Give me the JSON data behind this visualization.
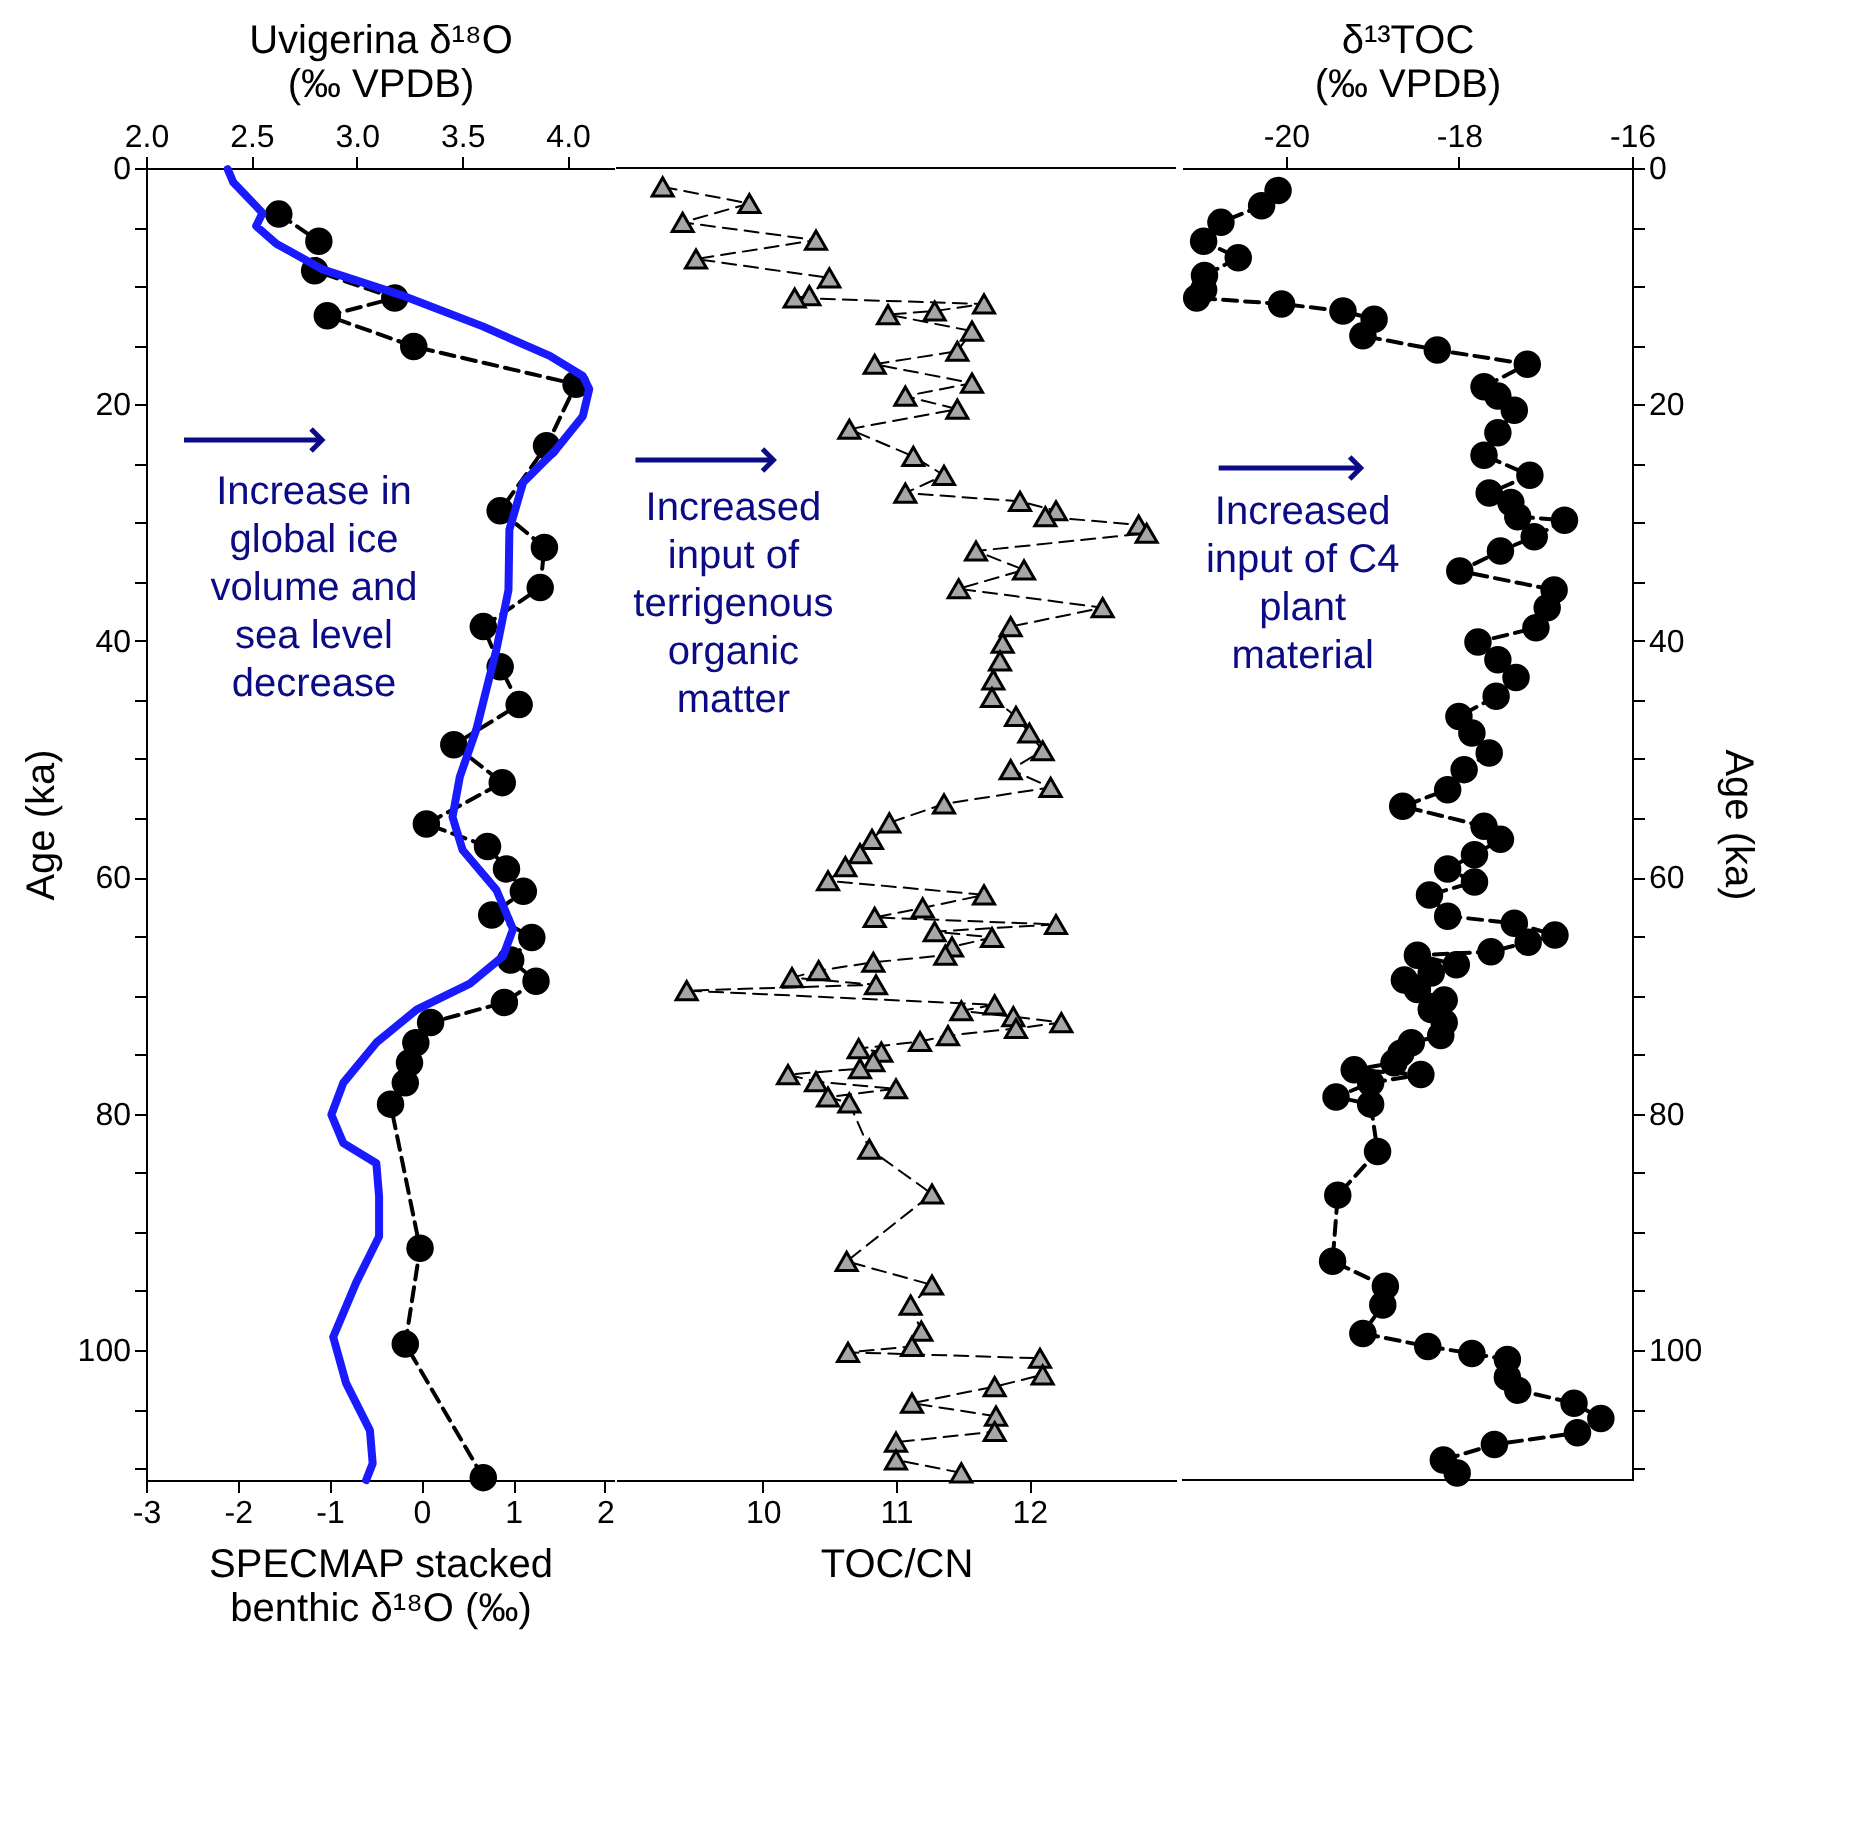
{
  "chart_data": [
    {
      "type": "line",
      "x2label": "Uvigerina δ¹⁸O\n(‰ VPDB)",
      "xlabel": "SPECMAP stacked\nbenthic δ¹⁸O (‰)",
      "ylabel": "Age (ka)",
      "ylim": [
        111,
        0
      ],
      "yticks": [
        0,
        {
          "value": 5,
          "label": null
        },
        {
          "value": 10,
          "label": null
        },
        {
          "value": 15,
          "label": null
        },
        20,
        {
          "value": 25,
          "label": null
        },
        {
          "value": 30,
          "label": null
        },
        {
          "value": 35,
          "label": null
        },
        40,
        {
          "value": 45,
          "label": null
        },
        {
          "value": 50,
          "label": null
        },
        {
          "value": 55,
          "label": null
        },
        60,
        {
          "value": 65,
          "label": null
        },
        {
          "value": 70,
          "label": null
        },
        {
          "value": 75,
          "label": null
        },
        80,
        {
          "value": 85,
          "label": null
        },
        {
          "value": 90,
          "label": null
        },
        {
          "value": 95,
          "label": null
        },
        100,
        {
          "value": 105,
          "label": null
        },
        {
          "value": 110,
          "label": null
        }
      ],
      "xlim": [
        -3,
        2.1
      ],
      "xticks": [
        -3,
        -2,
        -1,
        0,
        1,
        2
      ],
      "x2lim": [
        2.0,
        4.22
      ],
      "x2ticks": [
        {
          "value": 2.0,
          "label": "2.0"
        },
        2.5,
        {
          "value": 3.0,
          "label": "3.0"
        },
        3.5,
        {
          "value": 4.0,
          "label": "4.0"
        }
      ],
      "annotations": [
        "Increase in\nglobal ice\nvolume and\nsea level\ndecrease"
      ],
      "series": [
        {
          "axis": "x2",
          "color": "#000000",
          "marker": "circle",
          "line_style": "dashed",
          "x": [
            2.63,
            2.82,
            2.8,
            3.18,
            2.86,
            3.27,
            4.04,
            3.9,
            3.68,
            3.89,
            3.87,
            3.6,
            3.68,
            3.77,
            3.46,
            3.69,
            3.33,
            3.62,
            3.71,
            3.79,
            3.64,
            3.83,
            3.73,
            3.85,
            3.7,
            3.35,
            3.28,
            3.25,
            3.23,
            3.16,
            3.3,
            3.23,
            3.6
          ],
          "values": [
            3.9,
            6.2,
            8.7,
            11.0,
            12.5,
            15.1,
            18.3,
            23.5,
            29.0,
            32.1,
            35.5,
            38.8,
            42.2,
            45.4,
            48.8,
            52.0,
            55.5,
            57.4,
            59.3,
            61.2,
            63.2,
            65.1,
            67.0,
            68.8,
            70.6,
            72.3,
            74.0,
            75.7,
            77.4,
            79.2,
            91.4,
            99.5,
            110.8
          ]
        },
        {
          "color": "#1a1aff",
          "marker": "none",
          "line_style": "solid",
          "x": [
            -2.11,
            -2.05,
            -1.73,
            -1.8,
            -1.58,
            -1.07,
            -0.2,
            0.67,
            1.4,
            1.76,
            1.83,
            1.76,
            1.47,
            1.11,
            0.96,
            0.95,
            0.82,
            0.6,
            0.42,
            0.34,
            0.45,
            0.82,
            1.0,
            0.89,
            0.53,
            -0.05,
            -0.49,
            -0.85,
            -0.98,
            -0.85,
            -0.49,
            -0.46,
            -0.46,
            -0.71,
            -0.96,
            -0.82,
            -0.56,
            -0.53,
            -0.6
          ],
          "values": [
            0.1,
            1.2,
            3.8,
            4.9,
            6.4,
            8.6,
            10.8,
            13.4,
            15.9,
            17.6,
            18.7,
            21.0,
            23.8,
            26.6,
            30.6,
            35.7,
            40.7,
            47.5,
            51.5,
            54.9,
            57.7,
            61.1,
            64.4,
            66.7,
            69.0,
            71.2,
            74.0,
            77.4,
            80.1,
            82.5,
            84.2,
            87.0,
            90.4,
            94.3,
            98.9,
            102.8,
            106.8,
            109.6,
            111.0
          ]
        }
      ]
    },
    {
      "type": "line",
      "xlabel": "TOC/CN",
      "tick_labels": "x",
      "ylim": [
        111,
        0
      ],
      "xlim": [
        8.9,
        13.1
      ],
      "xticks": [
        10,
        11,
        12
      ],
      "annotations": [
        "Increased\ninput of\nterrigenous\norganic\nmatter"
      ],
      "series": [
        {
          "color": "#a6a6a6",
          "marker": "triangle",
          "line_style": "dashed",
          "x": [
            9.25,
            9.9,
            9.4,
            10.4,
            9.5,
            10.5,
            10.35,
            10.24,
            11.66,
            11.29,
            10.94,
            11.57,
            11.46,
            10.84,
            11.57,
            11.07,
            11.46,
            10.65,
            11.13,
            11.36,
            11.07,
            11.93,
            12.2,
            12.12,
            12.82,
            12.88,
            11.6,
            11.96,
            11.47,
            12.55,
            11.86,
            11.8,
            11.78,
            11.73,
            11.72,
            11.9,
            12.0,
            12.1,
            11.86,
            12.16,
            11.36,
            10.95,
            10.82,
            10.73,
            10.62,
            10.49,
            11.66,
            11.2,
            10.84,
            12.2,
            11.29,
            11.72,
            11.42,
            11.37,
            10.83,
            10.42,
            10.22,
            10.85,
            9.43,
            11.74,
            11.49,
            11.88,
            12.24,
            11.9,
            11.39,
            11.18,
            10.72,
            10.89,
            10.83,
            10.73,
            10.19,
            10.4,
            11.0,
            10.49,
            10.65,
            10.8,
            11.27,
            10.63,
            11.27,
            11.11,
            11.19,
            11.12,
            10.64,
            12.08,
            12.1,
            11.74,
            11.12,
            11.75,
            11.74,
            11.0,
            11.0,
            11.49
          ],
          "values": [
            1.6,
            3.0,
            4.6,
            6.1,
            7.7,
            9.3,
            10.8,
            11.0,
            11.5,
            12.1,
            12.4,
            13.8,
            15.5,
            16.6,
            18.2,
            19.3,
            20.4,
            22.1,
            24.4,
            26.0,
            27.5,
            28.2,
            29.0,
            29.5,
            30.2,
            30.9,
            32.4,
            34.0,
            35.6,
            37.2,
            38.8,
            40.2,
            41.7,
            43.3,
            44.8,
            46.4,
            47.8,
            49.3,
            50.9,
            52.4,
            53.8,
            55.4,
            56.8,
            58.0,
            59.1,
            60.3,
            61.5,
            62.6,
            63.4,
            64.0,
            64.6,
            65.1,
            65.9,
            66.6,
            67.2,
            67.9,
            68.5,
            69.1,
            69.6,
            70.8,
            71.3,
            71.8,
            72.3,
            72.8,
            73.4,
            73.9,
            74.5,
            74.8,
            75.6,
            76.2,
            76.7,
            77.3,
            77.9,
            78.6,
            79.1,
            83.0,
            86.8,
            92.5,
            94.5,
            96.2,
            98.4,
            99.7,
            100.2,
            100.7,
            102.1,
            103.1,
            104.5,
            105.6,
            106.9,
            107.8,
            109.3,
            110.4
          ]
        }
      ]
    },
    {
      "type": "line",
      "xlabel": "δ¹³TOC\n(‰ VPDB)",
      "ylabel": "Age (ka)",
      "ylim": [
        111,
        0
      ],
      "yticks": [
        0,
        {
          "value": 5,
          "label": null
        },
        {
          "value": 10,
          "label": null
        },
        {
          "value": 15,
          "label": null
        },
        20,
        {
          "value": 25,
          "label": null
        },
        {
          "value": 30,
          "label": null
        },
        {
          "value": 35,
          "label": null
        },
        40,
        {
          "value": 45,
          "label": null
        },
        {
          "value": 50,
          "label": null
        },
        {
          "value": 55,
          "label": null
        },
        60,
        {
          "value": 65,
          "label": null
        },
        {
          "value": 70,
          "label": null
        },
        {
          "value": 75,
          "label": null
        },
        80,
        {
          "value": 85,
          "label": null
        },
        {
          "value": 90,
          "label": null
        },
        {
          "value": 95,
          "label": null
        },
        100,
        {
          "value": 105,
          "label": null
        },
        {
          "value": 110,
          "label": null
        }
      ],
      "xlim": [
        -21.2,
        -16
      ],
      "xticks": [
        -20,
        -18,
        -16
      ],
      "annotations": [
        "Increased\ninput of C4\nplant\nmaterial"
      ],
      "series": [
        {
          "color": "#000000",
          "marker": "circle",
          "line_style": "dashed",
          "x": [
            -20.09,
            -20.28,
            -20.75,
            -20.95,
            -20.55,
            -20.94,
            -20.95,
            -21.03,
            -20.05,
            -19.34,
            -18.98,
            -19.11,
            -18.25,
            -17.21,
            -17.71,
            -17.55,
            -17.36,
            -17.55,
            -17.71,
            -17.18,
            -17.65,
            -17.4,
            -17.32,
            -16.78,
            -17.13,
            -17.52,
            -17.99,
            -16.9,
            -16.98,
            -17.11,
            -17.78,
            -17.55,
            -17.34,
            -17.57,
            -18.0,
            -17.85,
            -17.65,
            -17.94,
            -18.13,
            -18.65,
            -17.71,
            -17.52,
            -17.82,
            -18.13,
            -17.82,
            -18.34,
            -18.13,
            -17.36,
            -16.89,
            -17.2,
            -17.63,
            -18.48,
            -18.03,
            -18.32,
            -18.63,
            -18.48,
            -18.17,
            -18.32,
            -18.17,
            -18.21,
            -18.55,
            -18.67,
            -18.75,
            -19.21,
            -18.44,
            -19.02,
            -19.42,
            -19.02,
            -18.94,
            -19.4,
            -19.46,
            -18.85,
            -18.88,
            -19.11,
            -18.36,
            -17.85,
            -17.44,
            -17.44,
            -17.32,
            -16.67,
            -16.36,
            -16.63,
            -17.59,
            -18.18,
            -18.02
          ],
          "values": [
            1.9,
            3.2,
            4.6,
            6.2,
            7.6,
            9.1,
            10.3,
            11.0,
            11.5,
            12.1,
            12.8,
            14.2,
            15.4,
            16.6,
            18.5,
            19.3,
            20.5,
            22.4,
            24.3,
            26.0,
            27.5,
            28.3,
            29.5,
            29.8,
            31.2,
            32.4,
            34.1,
            35.7,
            37.2,
            38.9,
            40.1,
            41.6,
            43.1,
            44.7,
            46.4,
            47.8,
            49.5,
            50.9,
            52.6,
            54.0,
            55.7,
            56.8,
            58.1,
            59.3,
            60.4,
            61.5,
            63.3,
            63.9,
            64.9,
            65.5,
            66.3,
            66.6,
            67.4,
            68.1,
            68.7,
            69.5,
            70.4,
            71.2,
            72.3,
            73.4,
            74.0,
            74.9,
            75.7,
            76.3,
            76.7,
            77.4,
            78.6,
            79.2,
            83.2,
            86.9,
            92.5,
            94.6,
            96.2,
            98.6,
            99.7,
            100.3,
            100.8,
            102.3,
            103.4,
            104.5,
            105.8,
            107.0,
            108.0,
            109.3,
            110.4
          ]
        }
      ]
    }
  ]
}
